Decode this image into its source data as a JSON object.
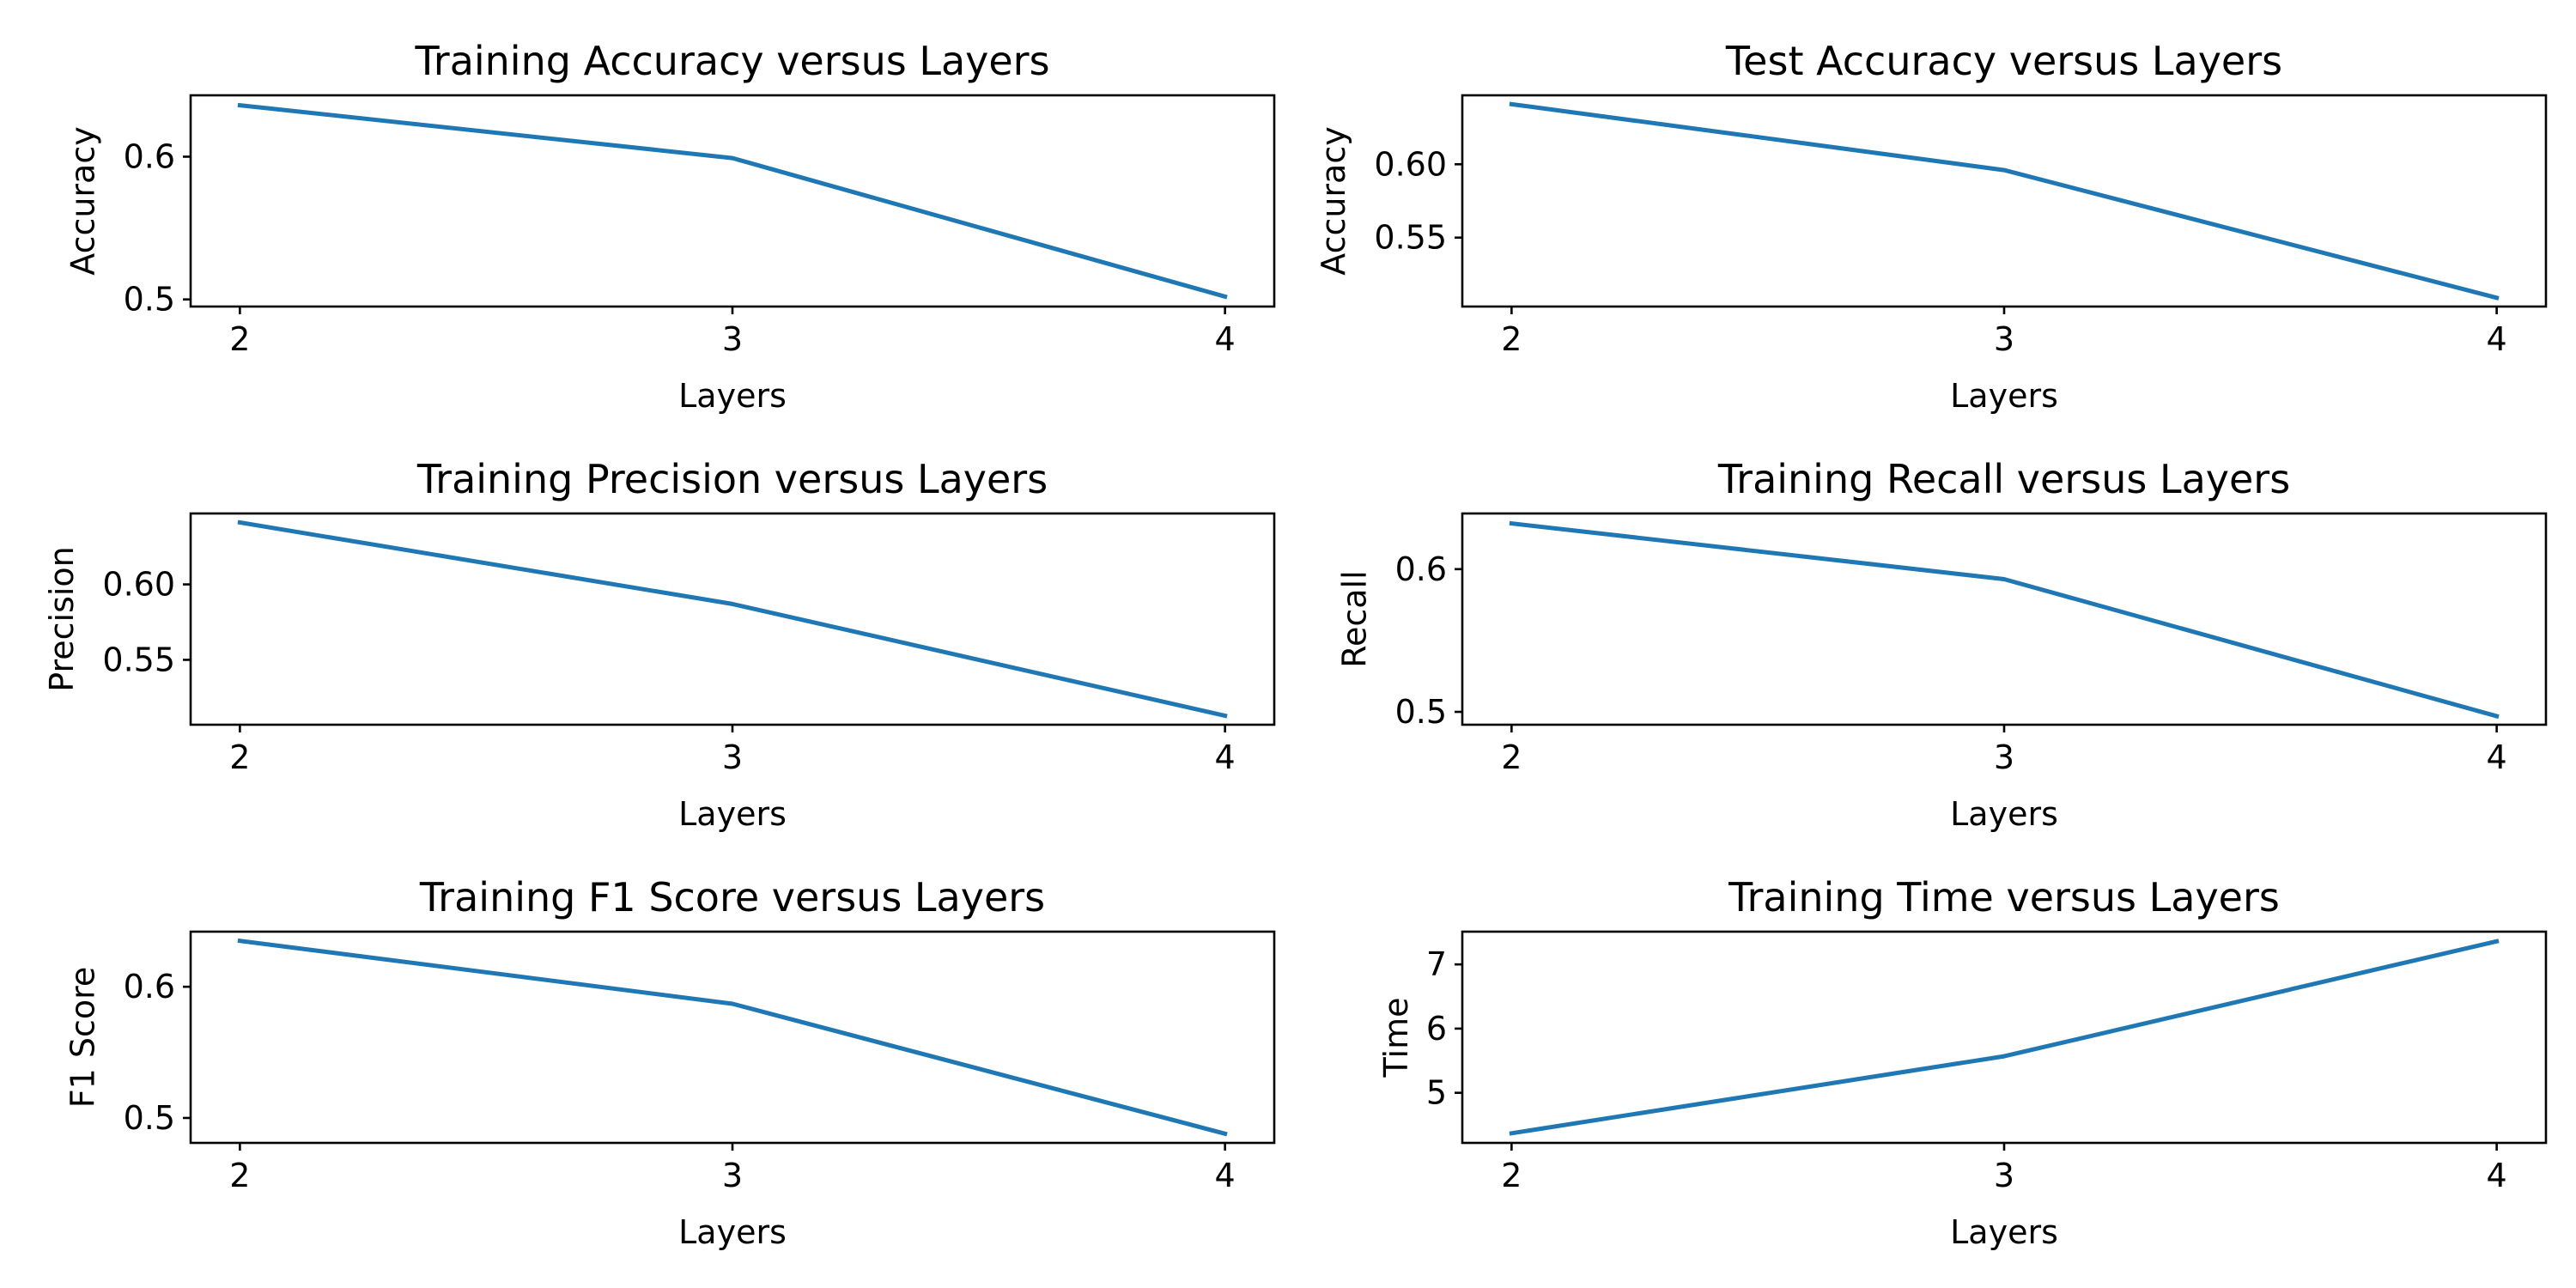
{
  "chart_data": [
    {
      "type": "line",
      "title": "Training Accuracy versus Layers",
      "xlabel": "Layers",
      "ylabel": "Accuracy",
      "x": [
        2,
        3,
        4
      ],
      "series": [
        {
          "values": [
            0.636,
            0.599,
            0.502
          ]
        }
      ],
      "xticks": [
        "2",
        "3",
        "4"
      ],
      "yticks": [
        0.5,
        0.6
      ],
      "ytick_labels": [
        "0.5",
        "0.6"
      ],
      "xlim": [
        1.9,
        4.1
      ],
      "ylim": [
        0.495,
        0.643
      ],
      "grid": false,
      "color": "#1f77b4"
    },
    {
      "type": "line",
      "title": "Test Accuracy versus Layers",
      "xlabel": "Layers",
      "ylabel": "Accuracy",
      "x": [
        2,
        3,
        4
      ],
      "series": [
        {
          "values": [
            0.641,
            0.596,
            0.509
          ]
        }
      ],
      "xticks": [
        "2",
        "3",
        "4"
      ],
      "yticks": [
        0.55,
        0.6
      ],
      "ytick_labels": [
        "0.55",
        "0.60"
      ],
      "xlim": [
        1.9,
        4.1
      ],
      "ylim": [
        0.503,
        0.647
      ],
      "grid": false,
      "color": "#1f77b4"
    },
    {
      "type": "line",
      "title": "Training Precision versus Layers",
      "xlabel": "Layers",
      "ylabel": "Precision",
      "x": [
        2,
        3,
        4
      ],
      "series": [
        {
          "values": [
            0.641,
            0.587,
            0.513
          ]
        }
      ],
      "xticks": [
        "2",
        "3",
        "4"
      ],
      "yticks": [
        0.55,
        0.6
      ],
      "ytick_labels": [
        "0.55",
        "0.60"
      ],
      "xlim": [
        1.9,
        4.1
      ],
      "ylim": [
        0.507,
        0.647
      ],
      "grid": false,
      "color": "#1f77b4"
    },
    {
      "type": "line",
      "title": "Training Recall versus Layers",
      "xlabel": "Layers",
      "ylabel": "Recall",
      "x": [
        2,
        3,
        4
      ],
      "series": [
        {
          "values": [
            0.632,
            0.593,
            0.497
          ]
        }
      ],
      "xticks": [
        "2",
        "3",
        "4"
      ],
      "yticks": [
        0.5,
        0.6
      ],
      "ytick_labels": [
        "0.5",
        "0.6"
      ],
      "xlim": [
        1.9,
        4.1
      ],
      "ylim": [
        0.491,
        0.639
      ],
      "grid": false,
      "color": "#1f77b4"
    },
    {
      "type": "line",
      "title": "Training F1 Score versus Layers",
      "xlabel": "Layers",
      "ylabel": "F1 Score",
      "x": [
        2,
        3,
        4
      ],
      "series": [
        {
          "values": [
            0.635,
            0.587,
            0.488
          ]
        }
      ],
      "xticks": [
        "2",
        "3",
        "4"
      ],
      "yticks": [
        0.5,
        0.6
      ],
      "ytick_labels": [
        "0.5",
        "0.6"
      ],
      "xlim": [
        1.9,
        4.1
      ],
      "ylim": [
        0.481,
        0.642
      ],
      "grid": false,
      "color": "#1f77b4"
    },
    {
      "type": "line",
      "title": "Training Time versus Layers",
      "xlabel": "Layers",
      "ylabel": "Time",
      "x": [
        2,
        3,
        4
      ],
      "series": [
        {
          "values": [
            4.37,
            5.57,
            7.36
          ]
        }
      ],
      "xticks": [
        "2",
        "3",
        "4"
      ],
      "yticks": [
        5,
        6,
        7
      ],
      "ytick_labels": [
        "5",
        "6",
        "7"
      ],
      "xlim": [
        1.9,
        4.1
      ],
      "ylim": [
        4.22,
        7.51
      ],
      "grid": false,
      "color": "#1f77b4"
    }
  ]
}
